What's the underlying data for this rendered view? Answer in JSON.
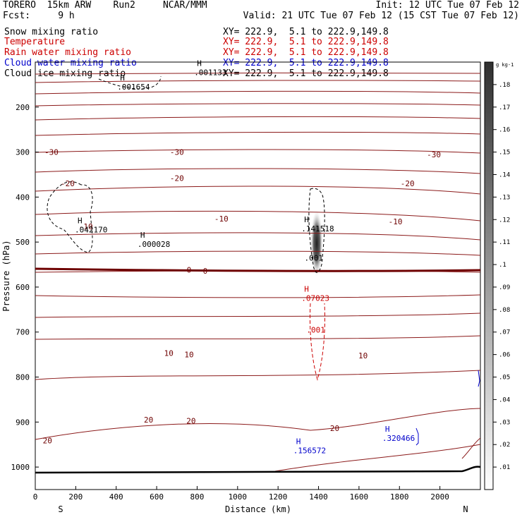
{
  "header": {
    "model": "TORERO  15km ARW    Run2     NCAR/MMM",
    "init": "Init: 12 UTC Tue 07 Feb 12",
    "fcst": "Fcst:     9 h",
    "valid": "Valid: 21 UTC Tue 07 Feb 12 (15 CST Tue 07 Feb 12)"
  },
  "fields": [
    {
      "name": "Snow mixing ratio",
      "xy": "XY= 222.9,  5.1 to 222.9,149.8",
      "color": "#000000"
    },
    {
      "name": "Temperature",
      "xy": "XY= 222.9,  5.1 to 222.9,149.8",
      "color": "#cc0000"
    },
    {
      "name": "Rain water mixing ratio",
      "xy": "XY= 222.9,  5.1 to 222.9,149.8",
      "color": "#cc0000"
    },
    {
      "name": "Cloud water mixing ratio",
      "xy": "XY= 222.9,  5.1 to 222.9,149.8",
      "color": "#0000cc"
    },
    {
      "name": "Cloud ice mixing ratio",
      "xy": "XY= 222.9,  5.1 to 222.9,149.8",
      "color": "#000000"
    }
  ],
  "chart_data": {
    "type": "contour-cross-section",
    "xlabel": "Distance (km)",
    "ylabel": "Pressure (hPa)",
    "xlim": [
      0,
      2200
    ],
    "ylim": [
      1050,
      100
    ],
    "x_ticks": [
      0,
      200,
      400,
      600,
      800,
      1000,
      1200,
      1400,
      1600,
      1800,
      2000
    ],
    "y_ticks": [
      200,
      300,
      400,
      500,
      600,
      700,
      800,
      900,
      1000
    ],
    "end_left": "S",
    "end_right": "N",
    "colorbar": {
      "units": "g kg-1",
      "ticks": [
        ".01",
        ".02",
        ".03",
        ".04",
        ".05",
        ".06",
        ".07",
        ".08",
        ".09",
        ".1",
        ".11",
        ".12",
        ".13",
        ".14",
        ".15",
        ".16",
        ".17",
        ".18"
      ]
    },
    "temperature_labels": [
      {
        "text": "-30",
        "x": 80,
        "p": 300
      },
      {
        "text": "-30",
        "x": 700,
        "p": 300
      },
      {
        "text": "-30",
        "x": 1970,
        "p": 305
      },
      {
        "text": "-20",
        "x": 160,
        "p": 370
      },
      {
        "text": "-20",
        "x": 700,
        "p": 358
      },
      {
        "text": "-20",
        "x": 1840,
        "p": 370
      },
      {
        "text": "-10",
        "x": 250,
        "p": 465
      },
      {
        "text": "-10",
        "x": 920,
        "p": 448
      },
      {
        "text": "-10",
        "x": 1780,
        "p": 454
      },
      {
        "text": "0",
        "x": 760,
        "p": 562
      },
      {
        "text": "0",
        "x": 840,
        "p": 564
      },
      {
        "text": "10",
        "x": 660,
        "p": 747
      },
      {
        "text": "10",
        "x": 760,
        "p": 750
      },
      {
        "text": "10",
        "x": 1620,
        "p": 752
      },
      {
        "text": "20",
        "x": 60,
        "p": 941
      },
      {
        "text": "20",
        "x": 560,
        "p": 895
      },
      {
        "text": "20",
        "x": 770,
        "p": 897
      },
      {
        "text": "20",
        "x": 1480,
        "p": 914
      }
    ],
    "maxima": [
      {
        "field": "cloud ice",
        "mark": "H",
        "value": ".001654",
        "x": 440,
        "p": 150
      },
      {
        "field": "snow",
        "mark": "H",
        "value": ".001133",
        "x": 820,
        "p": 118
      },
      {
        "field": "snow",
        "mark": "H",
        "value": ".042170",
        "x": 230,
        "p": 468
      },
      {
        "field": "snow",
        "mark": "H",
        "value": ".000028",
        "x": 540,
        "p": 500
      },
      {
        "field": "snow",
        "mark": "H",
        "value": ".141518",
        "x": 1350,
        "p": 465
      },
      {
        "field": "rain",
        "mark": "H",
        "value": ".07023",
        "x": 1350,
        "p": 620
      },
      {
        "field": "cloud water",
        "mark": "H",
        "value": ".156572",
        "x": 1310,
        "p": 958
      },
      {
        "field": "cloud water",
        "mark": "H",
        "value": ".320466",
        "x": 1750,
        "p": 931
      }
    ],
    "contour_labels": [
      {
        "field": "snow",
        "text": ".001",
        "x": 1330,
        "p": 535
      },
      {
        "field": "rain",
        "text": ".001",
        "x": 1340,
        "p": 695
      }
    ]
  }
}
